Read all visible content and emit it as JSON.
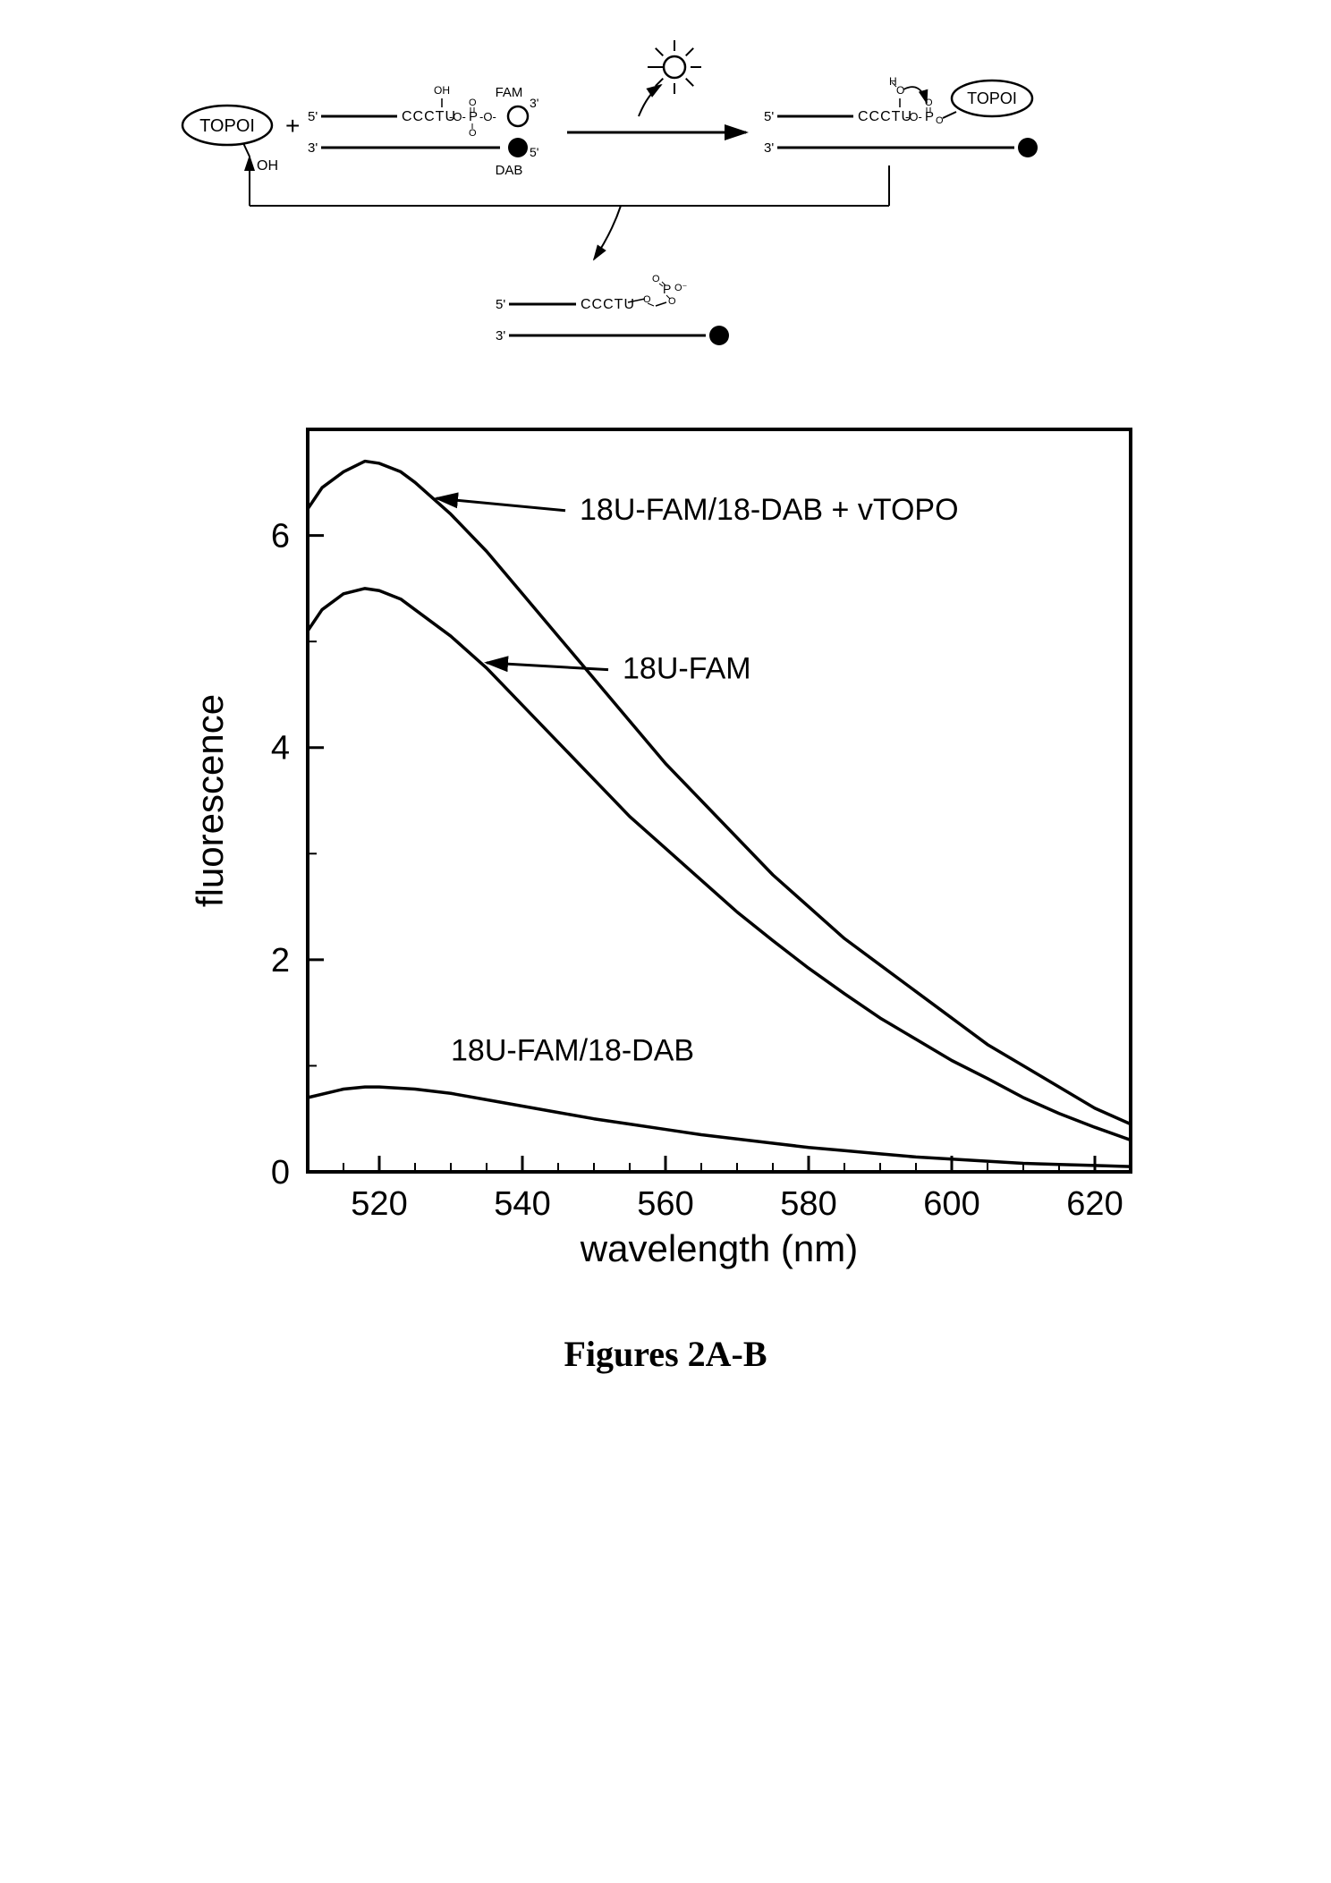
{
  "caption": "Figures 2A-B",
  "scheme": {
    "topoi_label": "TOPOI",
    "oh_label": "OH",
    "strand_top_5": "5'",
    "strand_top_3": "3'",
    "strand_bot_3": "3'",
    "strand_bot_5": "5'",
    "seq_label": "CCCTU",
    "fam_label": "FAM",
    "dab_label": "DAB",
    "h_label": "H",
    "colors": {
      "line": "#000000",
      "fill_dark": "#000000",
      "fill_light": "#ffffff"
    }
  },
  "chart": {
    "type": "line",
    "xlabel": "wavelength (nm)",
    "ylabel": "fluorescence",
    "xlim": [
      510,
      625
    ],
    "ylim": [
      0,
      7
    ],
    "xticks": [
      520,
      540,
      560,
      580,
      600,
      620
    ],
    "yticks": [
      0,
      2,
      4,
      6
    ],
    "minor_x_step": 5,
    "minor_y_step": 1,
    "label_fontsize": 42,
    "tick_fontsize": 38,
    "line_color": "#000000",
    "line_width": 3.5,
    "axis_width": 4,
    "background_color": "#ffffff",
    "series": [
      {
        "name": "18U-FAM/18-DAB + vTOPO",
        "label": "18U-FAM/18-DAB + vTOPO",
        "arrow_from": [
          546,
          6.15
        ],
        "arrow_to": [
          528,
          6.35
        ],
        "label_pos": [
          548,
          6.15
        ],
        "points": [
          [
            510,
            6.25
          ],
          [
            512,
            6.45
          ],
          [
            515,
            6.6
          ],
          [
            518,
            6.7
          ],
          [
            520,
            6.68
          ],
          [
            523,
            6.6
          ],
          [
            525,
            6.5
          ],
          [
            530,
            6.2
          ],
          [
            535,
            5.85
          ],
          [
            540,
            5.45
          ],
          [
            545,
            5.05
          ],
          [
            550,
            4.65
          ],
          [
            555,
            4.25
          ],
          [
            560,
            3.85
          ],
          [
            565,
            3.5
          ],
          [
            570,
            3.15
          ],
          [
            575,
            2.8
          ],
          [
            580,
            2.5
          ],
          [
            585,
            2.2
          ],
          [
            590,
            1.95
          ],
          [
            595,
            1.7
          ],
          [
            600,
            1.45
          ],
          [
            605,
            1.2
          ],
          [
            610,
            1.0
          ],
          [
            615,
            0.8
          ],
          [
            620,
            0.6
          ],
          [
            625,
            0.45
          ]
        ]
      },
      {
        "name": "18U-FAM",
        "label": "18U-FAM",
        "arrow_from": [
          552,
          4.65
        ],
        "arrow_to": [
          535,
          4.8
        ],
        "label_pos": [
          554,
          4.65
        ],
        "points": [
          [
            510,
            5.1
          ],
          [
            512,
            5.3
          ],
          [
            515,
            5.45
          ],
          [
            518,
            5.5
          ],
          [
            520,
            5.48
          ],
          [
            523,
            5.4
          ],
          [
            525,
            5.3
          ],
          [
            530,
            5.05
          ],
          [
            535,
            4.75
          ],
          [
            540,
            4.4
          ],
          [
            545,
            4.05
          ],
          [
            550,
            3.7
          ],
          [
            555,
            3.35
          ],
          [
            560,
            3.05
          ],
          [
            565,
            2.75
          ],
          [
            570,
            2.45
          ],
          [
            575,
            2.18
          ],
          [
            580,
            1.92
          ],
          [
            585,
            1.68
          ],
          [
            590,
            1.45
          ],
          [
            595,
            1.25
          ],
          [
            600,
            1.05
          ],
          [
            605,
            0.88
          ],
          [
            610,
            0.7
          ],
          [
            615,
            0.55
          ],
          [
            620,
            0.42
          ],
          [
            625,
            0.3
          ]
        ]
      },
      {
        "name": "18U-FAM/18-DAB",
        "label": "18U-FAM/18-DAB",
        "arrow_from": null,
        "arrow_to": null,
        "label_pos": [
          530,
          1.05
        ],
        "points": [
          [
            510,
            0.7
          ],
          [
            515,
            0.78
          ],
          [
            518,
            0.8
          ],
          [
            520,
            0.8
          ],
          [
            525,
            0.78
          ],
          [
            530,
            0.74
          ],
          [
            535,
            0.68
          ],
          [
            540,
            0.62
          ],
          [
            545,
            0.56
          ],
          [
            550,
            0.5
          ],
          [
            555,
            0.45
          ],
          [
            560,
            0.4
          ],
          [
            565,
            0.35
          ],
          [
            570,
            0.31
          ],
          [
            575,
            0.27
          ],
          [
            580,
            0.23
          ],
          [
            585,
            0.2
          ],
          [
            590,
            0.17
          ],
          [
            595,
            0.14
          ],
          [
            600,
            0.12
          ],
          [
            605,
            0.1
          ],
          [
            610,
            0.08
          ],
          [
            615,
            0.07
          ],
          [
            620,
            0.06
          ],
          [
            625,
            0.05
          ]
        ]
      }
    ],
    "annotation_fontsize": 34
  }
}
